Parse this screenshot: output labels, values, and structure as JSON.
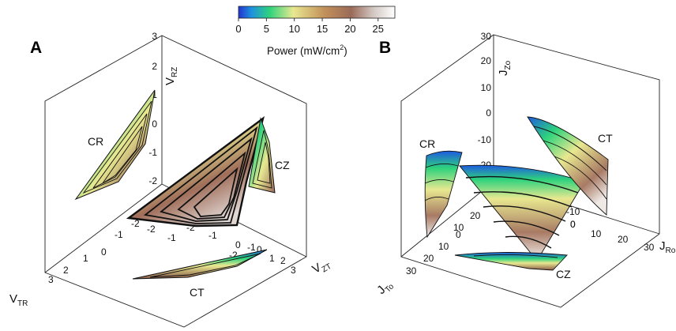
{
  "colorbar": {
    "ticks": [
      "0",
      "5",
      "10",
      "15",
      "20",
      "25"
    ],
    "tick_values": [
      0,
      5,
      10,
      15,
      20,
      25
    ],
    "range": [
      0,
      28
    ],
    "title_main": "Power (mW/cm",
    "title_sup": "2",
    "title_end": ")",
    "colormap": [
      "#2233cc",
      "#1ea0e6",
      "#2ed37c",
      "#e8e890",
      "#c2905a",
      "#9a6a58",
      "#d2c6c2",
      "#ffffff"
    ]
  },
  "panel_a": {
    "letter": "A",
    "axes": {
      "x": {
        "label_main": "V",
        "label_sub": "TR",
        "ticks": [
          "3",
          "2",
          "1",
          "0",
          "-1",
          "-2"
        ]
      },
      "y": {
        "label_main": "V",
        "label_sub": "ZT",
        "ticks": [
          "-2",
          "-1",
          "0",
          "1",
          "2",
          "3"
        ]
      },
      "z": {
        "label_main": "V",
        "label_sub": "RZ",
        "ticks": [
          "3",
          "2",
          "1",
          "0",
          "-1",
          "-2"
        ]
      },
      "floor_ticks": [
        "-2",
        "-1",
        "-2",
        "-1",
        "0"
      ]
    },
    "regions": [
      "CR",
      "CZ",
      "CT"
    ]
  },
  "panel_b": {
    "letter": "B",
    "axes": {
      "x": {
        "label_main": "J",
        "label_sub": "To",
        "ticks": [
          "30",
          "20",
          "10",
          "0"
        ]
      },
      "y": {
        "label_main": "J",
        "label_sub": "Ro",
        "ticks": [
          "0",
          "10",
          "20",
          "30"
        ]
      },
      "z": {
        "label_main": "J",
        "label_sub": "Zo",
        "ticks": [
          "30",
          "20",
          "10",
          "0",
          "-10",
          "-20"
        ]
      },
      "floor_ticks": [
        "20",
        "10",
        "0",
        "-10"
      ]
    },
    "regions": [
      "CR",
      "CT",
      "CZ"
    ]
  },
  "chart_data": [
    {
      "type": "heatmap",
      "panel": "A",
      "description_axes": [
        "V_TR",
        "V_ZT",
        "V_RZ"
      ],
      "value": "Power (mW/cm^2)",
      "range": [
        0,
        28
      ]
    },
    {
      "type": "heatmap",
      "panel": "B",
      "description_axes": [
        "J_To",
        "J_Ro",
        "J_Zo"
      ],
      "value": "Power (mW/cm^2)",
      "range": [
        0,
        28
      ]
    }
  ]
}
